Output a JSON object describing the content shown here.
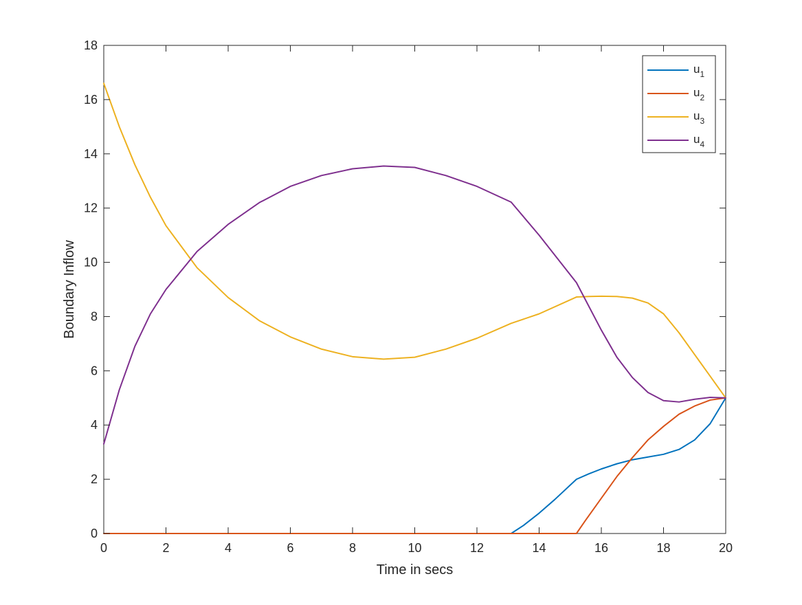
{
  "chart_data": {
    "type": "line",
    "title": "",
    "xlabel": "Time in secs",
    "ylabel": "Boundary Inflow",
    "xlim": [
      0,
      20
    ],
    "ylim": [
      0,
      18
    ],
    "xticks": [
      0,
      2,
      4,
      6,
      8,
      10,
      12,
      14,
      16,
      18,
      20
    ],
    "yticks": [
      0,
      2,
      4,
      6,
      8,
      10,
      12,
      14,
      16,
      18
    ],
    "grid": false,
    "legend_position": "top-right",
    "series": [
      {
        "name": "u",
        "subscript": "1",
        "color": "#0072BD",
        "x": [
          0,
          13.1,
          13.5,
          14,
          14.5,
          15.2,
          15.6,
          16,
          16.5,
          17,
          17.5,
          18,
          18.5,
          19,
          19.5,
          20
        ],
        "y": [
          0,
          0,
          0.3,
          0.75,
          1.25,
          2.0,
          2.2,
          2.38,
          2.57,
          2.72,
          2.82,
          2.92,
          3.1,
          3.45,
          4.05,
          5.0
        ]
      },
      {
        "name": "u",
        "subscript": "2",
        "color": "#D95319",
        "x": [
          0,
          15.2,
          15.5,
          16,
          16.5,
          17,
          17.5,
          18,
          18.5,
          19,
          19.5,
          20
        ],
        "y": [
          0,
          0,
          0.5,
          1.3,
          2.1,
          2.8,
          3.45,
          3.95,
          4.4,
          4.7,
          4.92,
          5.0
        ]
      },
      {
        "name": "u",
        "subscript": "3",
        "color": "#EDB120",
        "x": [
          0,
          0.5,
          1,
          1.5,
          2,
          3,
          4,
          5,
          6,
          7,
          8,
          9,
          10,
          11,
          12,
          13.1,
          14,
          15.2,
          15.6,
          16,
          16.5,
          17,
          17.5,
          18,
          18.5,
          19,
          19.5,
          20
        ],
        "y": [
          16.6,
          15.0,
          13.6,
          12.4,
          11.35,
          9.8,
          8.7,
          7.85,
          7.25,
          6.8,
          6.52,
          6.43,
          6.5,
          6.8,
          7.2,
          7.75,
          8.1,
          8.72,
          8.74,
          8.75,
          8.74,
          8.68,
          8.5,
          8.1,
          7.4,
          6.6,
          5.8,
          5.0
        ]
      },
      {
        "name": "u",
        "subscript": "4",
        "color": "#7E2F8E",
        "x": [
          0,
          0.5,
          1,
          1.5,
          2,
          3,
          4,
          5,
          6,
          7,
          8,
          9,
          10,
          11,
          12,
          13.1,
          14,
          15.2,
          16,
          16.5,
          17,
          17.5,
          18,
          18.5,
          19,
          19.5,
          20
        ],
        "y": [
          3.3,
          5.3,
          6.9,
          8.1,
          9.0,
          10.4,
          11.4,
          12.2,
          12.8,
          13.2,
          13.45,
          13.55,
          13.5,
          13.2,
          12.8,
          12.22,
          11.0,
          9.25,
          7.5,
          6.5,
          5.75,
          5.2,
          4.9,
          4.85,
          4.95,
          5.02,
          5.0
        ]
      }
    ]
  }
}
